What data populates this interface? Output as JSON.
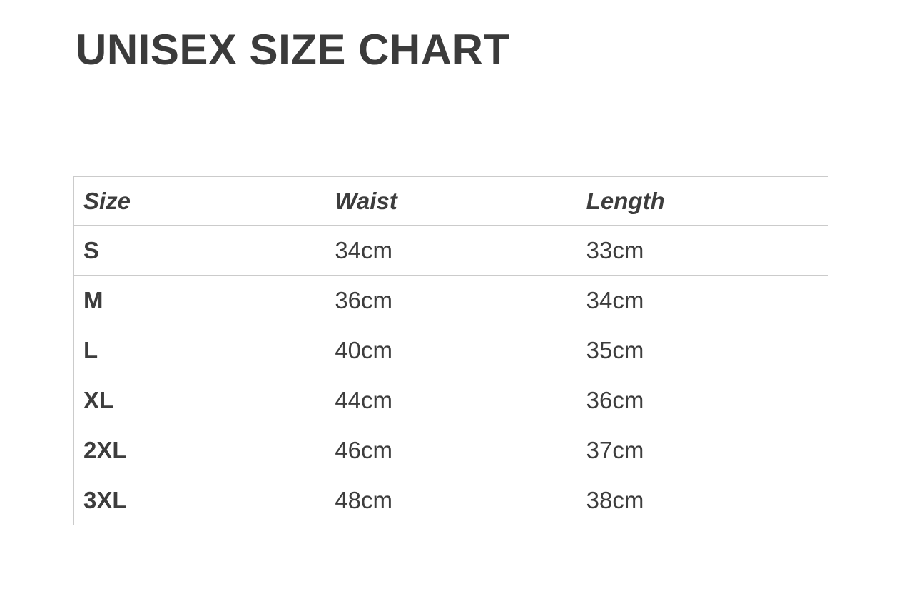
{
  "page": {
    "title": "UNISEX SIZE CHART"
  },
  "colors": {
    "background": "#ffffff",
    "text": "#3d3d3d",
    "title_text": "#3b3b3b",
    "table_border": "#cbcbcb"
  },
  "chart_data": {
    "type": "table",
    "title": "UNISEX SIZE CHART",
    "columns": [
      "Size",
      "Waist",
      "Length"
    ],
    "rows": [
      [
        "S",
        "34cm",
        "33cm"
      ],
      [
        "M",
        "36cm",
        "34cm"
      ],
      [
        "L",
        "40cm",
        "35cm"
      ],
      [
        "XL",
        "44cm",
        "36cm"
      ],
      [
        "2XL",
        "46cm",
        "37cm"
      ],
      [
        "3XL",
        "48cm",
        "38cm"
      ]
    ]
  }
}
